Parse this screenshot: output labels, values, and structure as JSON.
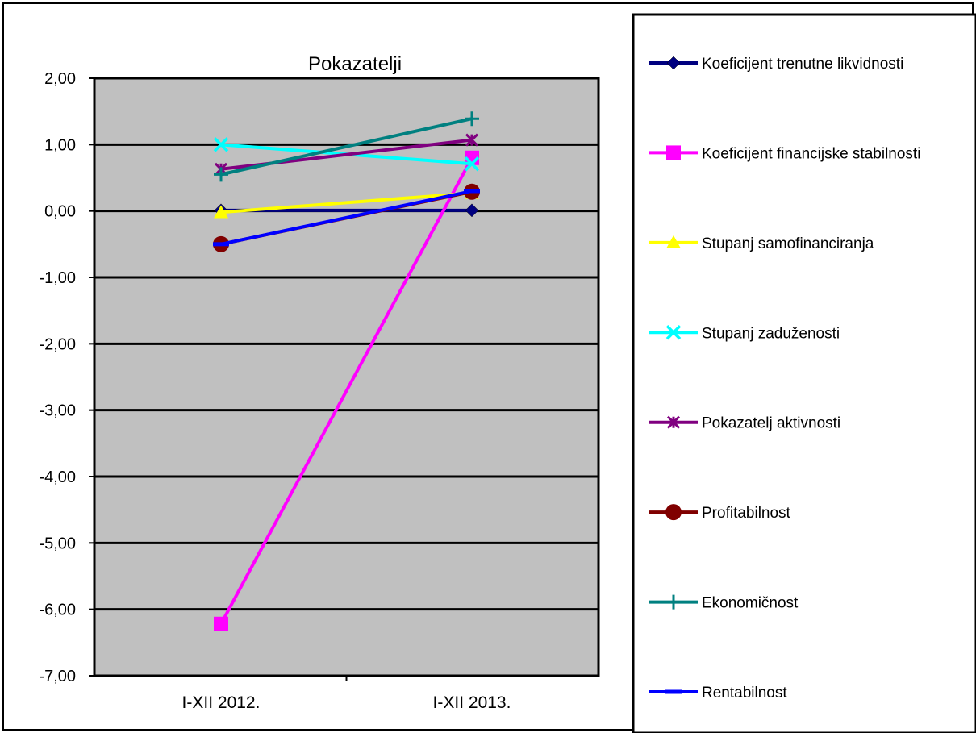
{
  "chart_data": {
    "type": "line",
    "title": "Pokazatelji",
    "xlabel": "",
    "ylabel": "",
    "categories": [
      "I-XII 2012.",
      "I-XII 2013."
    ],
    "ylim": [
      -7,
      2
    ],
    "ytick_step": 1,
    "ytick_labels": [
      "2,00",
      "1,00",
      "0,00",
      "-1,00",
      "-2,00",
      "-3,00",
      "-4,00",
      "-5,00",
      "-6,00",
      "-7,00"
    ],
    "grid": true,
    "plot_background": "#c0c0c0",
    "legend_position": "right",
    "series": [
      {
        "name": "Koeficijent trenutne likvidnosti",
        "color": "#000080",
        "marker": "diamond",
        "values": [
          0.01,
          0.01
        ]
      },
      {
        "name": "Koeficijent financijske stabilnosti",
        "color": "#ff00ff",
        "marker": "square",
        "values": [
          -6.22,
          0.8
        ]
      },
      {
        "name": "Stupanj samofinanciranja",
        "color": "#ffff00",
        "marker": "triangle",
        "values": [
          -0.02,
          0.27
        ]
      },
      {
        "name": "Stupanj zaduženosti",
        "color": "#00ffff",
        "marker": "x",
        "values": [
          1.0,
          0.71
        ]
      },
      {
        "name": "Pokazatelj aktivnosti",
        "color": "#800080",
        "marker": "star",
        "values": [
          0.63,
          1.07
        ]
      },
      {
        "name": "Profitabilnost",
        "color": "#800000",
        "marker": "circle",
        "values": [
          -0.5,
          0.29
        ]
      },
      {
        "name": "Ekonomičnost",
        "color": "#008080",
        "marker": "plus",
        "values": [
          0.55,
          1.39
        ]
      },
      {
        "name": "Rentabilnost",
        "color": "#0000ff",
        "marker": "dash",
        "values": [
          -0.5,
          0.3
        ]
      }
    ]
  }
}
